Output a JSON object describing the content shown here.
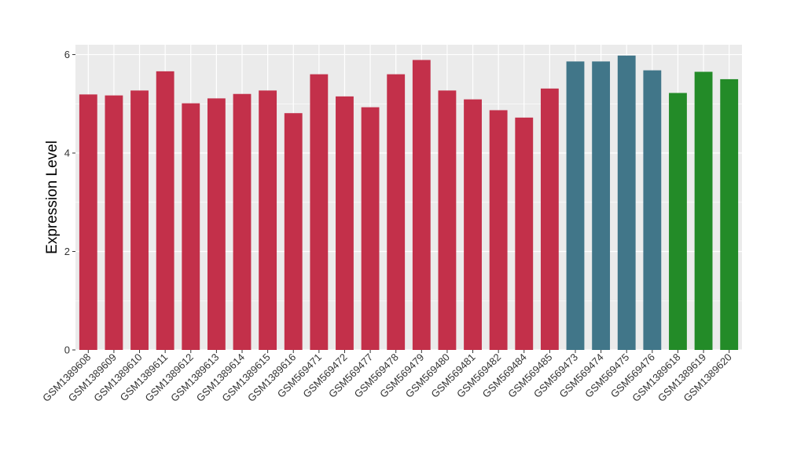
{
  "chart_data": {
    "type": "bar",
    "title": "",
    "xlabel": "",
    "ylabel": "Expression Level",
    "ylim": [
      0,
      6.2
    ],
    "yticks": [
      0,
      2,
      4,
      6
    ],
    "grid": true,
    "legend": "none",
    "colors": {
      "panel_background": "#EBEBEB",
      "gridline": "#FFFFFF",
      "group_1": "#C3304A",
      "group_2": "#417689",
      "group_3": "#238B28"
    },
    "categories": [
      "GSM1389608",
      "GSM1389609",
      "GSM1389610",
      "GSM1389611",
      "GSM1389612",
      "GSM1389613",
      "GSM1389614",
      "GSM1389615",
      "GSM1389616",
      "GSM569471",
      "GSM569472",
      "GSM569477",
      "GSM569478",
      "GSM569479",
      "GSM569480",
      "GSM569481",
      "GSM569482",
      "GSM569484",
      "GSM569485",
      "GSM569473",
      "GSM569474",
      "GSM569475",
      "GSM569476",
      "GSM1389618",
      "GSM1389619",
      "GSM1389620"
    ],
    "values": [
      5.19,
      5.17,
      5.27,
      5.66,
      5.01,
      5.11,
      5.2,
      5.27,
      4.81,
      5.6,
      5.15,
      4.93,
      5.6,
      5.89,
      5.27,
      5.09,
      4.87,
      4.72,
      5.31,
      5.86,
      5.86,
      5.98,
      5.68,
      5.22,
      5.65,
      5.5
    ],
    "groups": [
      1,
      1,
      1,
      1,
      1,
      1,
      1,
      1,
      1,
      1,
      1,
      1,
      1,
      1,
      1,
      1,
      1,
      1,
      1,
      2,
      2,
      2,
      2,
      3,
      3,
      3
    ]
  }
}
